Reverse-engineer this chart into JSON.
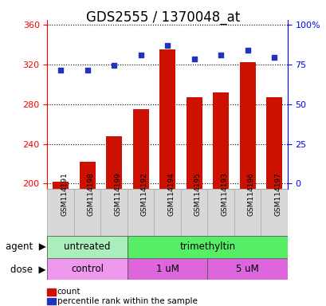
{
  "title": "GDS2555 / 1370048_at",
  "samples": [
    "GSM114191",
    "GSM114198",
    "GSM114199",
    "GSM114192",
    "GSM114194",
    "GSM114195",
    "GSM114193",
    "GSM114196",
    "GSM114197"
  ],
  "counts": [
    202,
    222,
    248,
    275,
    335,
    287,
    292,
    322,
    287
  ],
  "percentiles_pct": [
    70,
    70,
    73,
    79,
    85,
    77,
    79,
    82,
    78
  ],
  "ylim_left": [
    195,
    365
  ],
  "yticks_left": [
    200,
    240,
    280,
    320,
    360
  ],
  "ylim_right": [
    0,
    100
  ],
  "yticks_right": [
    0,
    25,
    50,
    75,
    100
  ],
  "bar_color": "#cc1100",
  "dot_color": "#2233bb",
  "agent_groups": [
    {
      "label": "untreated",
      "start": 0,
      "end": 3,
      "color": "#aaeebb"
    },
    {
      "label": "trimethyltin",
      "start": 3,
      "end": 9,
      "color": "#55ee66"
    }
  ],
  "dose_groups": [
    {
      "label": "control",
      "start": 0,
      "end": 3,
      "color": "#ee99ee"
    },
    {
      "label": "1 uM",
      "start": 3,
      "end": 6,
      "color": "#dd66dd"
    },
    {
      "label": "5 uM",
      "start": 6,
      "end": 9,
      "color": "#dd66dd"
    }
  ],
  "legend_count_label": "count",
  "legend_percentile_label": "percentile rank within the sample",
  "agent_label": "agent",
  "dose_label": "dose",
  "title_fontsize": 12,
  "tick_fontsize": 8,
  "sample_fontsize": 6.5,
  "row_fontsize": 8.5
}
